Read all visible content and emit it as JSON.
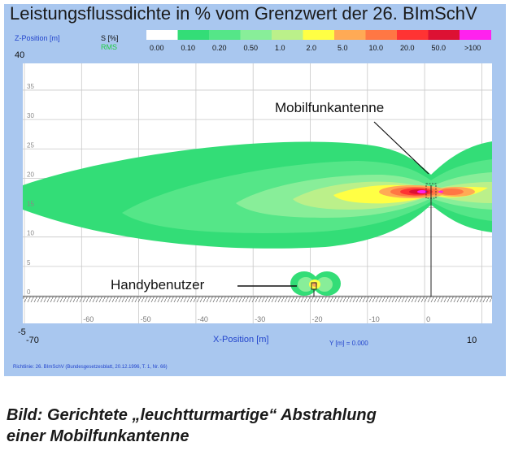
{
  "title": "Leistungsflussdichte in % vom Grenzwert der 26. BImSchV",
  "legend": {
    "axis_label": "Z-Position [m]",
    "unit_label": "S [%]",
    "mode_label": "RMS",
    "tick_labels": [
      "0.00",
      "0.10",
      "0.20",
      "0.50",
      "1.0",
      "2.0",
      "5.0",
      "10.0",
      "20.0",
      "50.0",
      ">100"
    ],
    "colors": [
      "#ffffff",
      "#33dd77",
      "#55e688",
      "#88ee99",
      "#bbf08a",
      "#ffff44",
      "#ffaa55",
      "#ff7744",
      "#ff3333",
      "#dd1133",
      "#ff22ee"
    ]
  },
  "axes": {
    "x_label": "X-Position [m]",
    "y_readout": "Y [m] = 0.000",
    "x_ticks": [
      "-70",
      "-60",
      "-50",
      "-40",
      "-30",
      "-20",
      "-10",
      "0",
      "10"
    ],
    "z_ticks": [
      "-5",
      "0",
      "5",
      "10",
      "15",
      "20",
      "25",
      "30",
      "35",
      "40"
    ]
  },
  "labels": {
    "antenna": "Mobilfunkantenne",
    "user": "Handybenutzer"
  },
  "footer": "Richtlinie:  26. BImSchV  (Bundesgesetzesblatt, 20.12.1996, T. 1, Nr. 66)",
  "caption": {
    "line1": "Bild: Gerichtete „leuchtturmartige“ Abstrahlung",
    "line2": "einer Mobilfunkantenne"
  }
}
